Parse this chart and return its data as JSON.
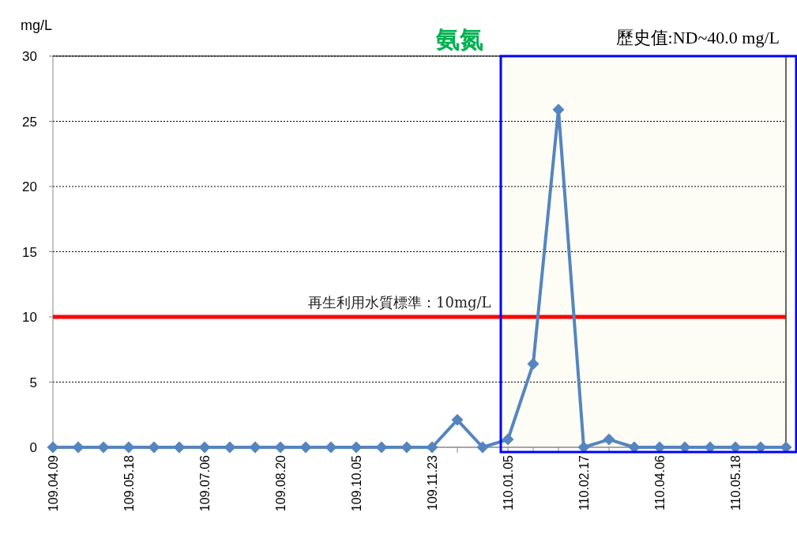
{
  "chart_data": {
    "type": "line",
    "title": "氨氮",
    "subtitle": "歷史值:ND~40.0 mg/L",
    "ylabel": "mg/L",
    "categories": [
      "109.04.09",
      null,
      null,
      "109.05.18",
      null,
      null,
      "109.07.06",
      null,
      null,
      "109.08.20",
      null,
      null,
      "109.10.05",
      null,
      null,
      "109.11.23",
      null,
      null,
      "110.01.05",
      null,
      null,
      "110.02.17",
      null,
      null,
      "110.04.06",
      null,
      null,
      "110.05.18",
      null,
      null
    ],
    "series": [
      {
        "color": "#5585bf",
        "values": [
          0,
          0,
          0,
          0,
          0,
          0,
          0,
          0,
          0,
          0,
          0,
          0,
          0,
          0,
          0,
          0,
          2.1,
          0,
          0.6,
          6.4,
          25.9,
          0,
          0.6,
          0,
          0,
          0,
          0,
          0,
          0,
          0
        ]
      }
    ],
    "ylim": [
      0,
      30
    ],
    "yticks": [
      0,
      5,
      10,
      15,
      20,
      25,
      30
    ],
    "grid": "y",
    "marker": "diamond",
    "line_style": "solid",
    "ref_lines": [
      {
        "axis": "y",
        "value": 10,
        "label": "再生利用水質標準：10mg/L",
        "color": "#ff0000",
        "line_style": "solid"
      }
    ]
  }
}
